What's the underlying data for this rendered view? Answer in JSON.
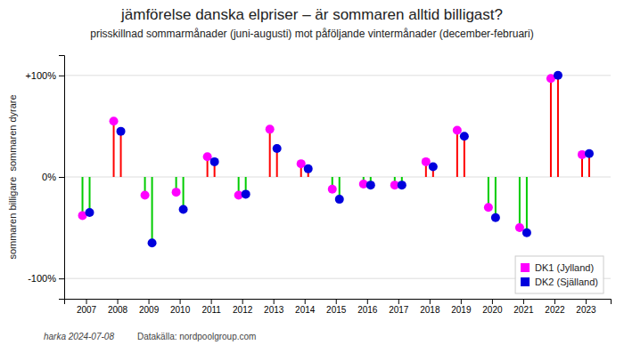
{
  "chart_data": {
    "type": "lollipop",
    "title": "jämförelse danska elpriser – är sommaren alltid billigast?",
    "subtitle": "prisskillnad sommarmånader (juni-augusti) mot påföljande vintermånader (december-februari)",
    "ylabel": "sommaren billigare  sommaren dyrare",
    "annotations": [
      "harka 2024-07-08",
      "Datakälla: nordpoolgroup.com"
    ],
    "x": [
      2007,
      2008,
      2009,
      2010,
      2011,
      2012,
      2013,
      2014,
      2015,
      2016,
      2017,
      2018,
      2019,
      2020,
      2021,
      2022,
      2023
    ],
    "xlim": [
      2006.3,
      2023.8
    ],
    "xticks": [
      2007,
      2008,
      2009,
      2010,
      2011,
      2012,
      2013,
      2014,
      2015,
      2016,
      2017,
      2018,
      2019,
      2020,
      2021,
      2022,
      2023
    ],
    "ylim": [
      -120,
      120
    ],
    "yticks": [
      {
        "value": -100,
        "label": "-100%"
      },
      {
        "value": 0,
        "label": "0%"
      },
      {
        "value": 100,
        "label": "+100%"
      }
    ],
    "grid": true,
    "legend": "lower right",
    "series": [
      {
        "name": "DK1 (Jylland)",
        "color": "#ff00ff",
        "colors": [
          "#00cc00",
          "#ff0000",
          "#00cc00",
          "#00cc00",
          "#ff0000",
          "#00cc00",
          "#ff0000",
          "#ff0000",
          "#00cc00",
          "#00cc00",
          "#00cc00",
          "#ff0000",
          "#ff0000",
          "#00cc00",
          "#00cc00",
          "#ff0000",
          "#ff0000"
        ],
        "values": [
          -38,
          55,
          -18,
          -15,
          20,
          -18,
          47,
          13,
          -12,
          -7,
          -8,
          15,
          46,
          -30,
          -50,
          97,
          22
        ]
      },
      {
        "name": "DK2 (Själland)",
        "color": "#0000dd",
        "colors": [
          "#00cc00",
          "#ff0000",
          "#00cc00",
          "#00cc00",
          "#ff0000",
          "#00cc00",
          "#ff0000",
          "#ff0000",
          "#00cc00",
          "#00cc00",
          "#00cc00",
          "#ff0000",
          "#ff0000",
          "#00cc00",
          "#00cc00",
          "#ff0000",
          "#ff0000"
        ],
        "values": [
          -35,
          45,
          -65,
          -32,
          15,
          -17,
          28,
          8,
          -22,
          -8,
          -8,
          10,
          40,
          -40,
          -55,
          100,
          23
        ]
      }
    ]
  }
}
